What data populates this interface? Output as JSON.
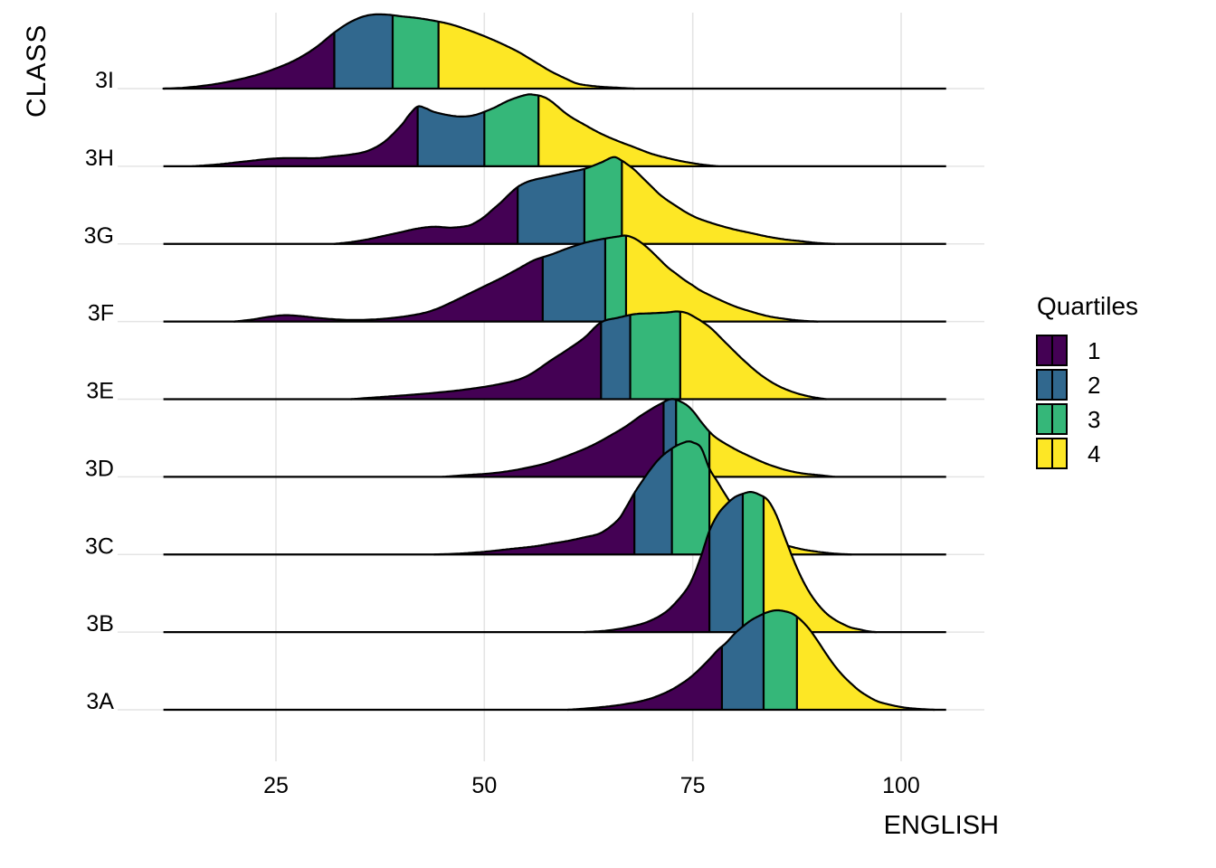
{
  "chart_data": {
    "type": "ridgeline",
    "title": "",
    "xlabel": "ENGLISH",
    "ylabel": "CLASS",
    "x_ticks": [
      25,
      50,
      75,
      100
    ],
    "x_tick_labels": [
      "25",
      "50",
      "75",
      "100"
    ],
    "x_range": [
      11.5,
      105.4
    ],
    "grid": {
      "major_x": true,
      "row_lines": true,
      "color": "#E4E4E4"
    },
    "legend": {
      "title": "Quartiles",
      "position": "right",
      "entries": [
        {
          "label": "1",
          "color": "#440154"
        },
        {
          "label": "2",
          "color": "#31688E"
        },
        {
          "label": "3",
          "color": "#35B779"
        },
        {
          "label": "4",
          "color": "#FDE725"
        }
      ]
    },
    "quartile_colors": [
      "#440154",
      "#31688E",
      "#35B779",
      "#FDE725"
    ],
    "outline_color": "#000000",
    "profile_height_units": "px (canvas 1344x960)",
    "classes_top_to_bottom": [
      {
        "label": "3I",
        "quartiles": [
          32,
          39,
          44.5
        ],
        "profile": [
          [
            11.5,
            0
          ],
          [
            14,
            1
          ],
          [
            17,
            4
          ],
          [
            20,
            9
          ],
          [
            23,
            16
          ],
          [
            26,
            26
          ],
          [
            28,
            35
          ],
          [
            30,
            47
          ],
          [
            32,
            62
          ],
          [
            34,
            74
          ],
          [
            36,
            81
          ],
          [
            38,
            82
          ],
          [
            40,
            80
          ],
          [
            42,
            78
          ],
          [
            44,
            75
          ],
          [
            46,
            71
          ],
          [
            48,
            65
          ],
          [
            50,
            58
          ],
          [
            52,
            50
          ],
          [
            54,
            41
          ],
          [
            56,
            30
          ],
          [
            58,
            19
          ],
          [
            60,
            10
          ],
          [
            61,
            6
          ],
          [
            62,
            4
          ],
          [
            64,
            2
          ],
          [
            66,
            1
          ],
          [
            68,
            0
          ]
        ]
      },
      {
        "label": "3H",
        "quartiles": [
          42,
          50,
          56.5
        ],
        "profile": [
          [
            15,
            0
          ],
          [
            18,
            2
          ],
          [
            21,
            5
          ],
          [
            24,
            8
          ],
          [
            26,
            9
          ],
          [
            28,
            9
          ],
          [
            30,
            9
          ],
          [
            32,
            11
          ],
          [
            34,
            13
          ],
          [
            36,
            17
          ],
          [
            38,
            27
          ],
          [
            40,
            45
          ],
          [
            41,
            57
          ],
          [
            42,
            66
          ],
          [
            43,
            64
          ],
          [
            44,
            60
          ],
          [
            46,
            56
          ],
          [
            47.5,
            55
          ],
          [
            49,
            57
          ],
          [
            51,
            64
          ],
          [
            53,
            73
          ],
          [
            55,
            79
          ],
          [
            56,
            79
          ],
          [
            57,
            77
          ],
          [
            58,
            72
          ],
          [
            60,
            57
          ],
          [
            62,
            46
          ],
          [
            64,
            36
          ],
          [
            66,
            28
          ],
          [
            68,
            21
          ],
          [
            70,
            14
          ],
          [
            72,
            9
          ],
          [
            74,
            5
          ],
          [
            76,
            2
          ],
          [
            78,
            0
          ]
        ]
      },
      {
        "label": "3G",
        "quartiles": [
          54,
          62,
          66.5
        ],
        "profile": [
          [
            32,
            0
          ],
          [
            34,
            2
          ],
          [
            36,
            5
          ],
          [
            38,
            9
          ],
          [
            40,
            13
          ],
          [
            42,
            17
          ],
          [
            44,
            19
          ],
          [
            46,
            18
          ],
          [
            48,
            20
          ],
          [
            49,
            24
          ],
          [
            50,
            30
          ],
          [
            51,
            38
          ],
          [
            52,
            46
          ],
          [
            53,
            55
          ],
          [
            54,
            63
          ],
          [
            55,
            68
          ],
          [
            56,
            71
          ],
          [
            57,
            73
          ],
          [
            58,
            75
          ],
          [
            60,
            79
          ],
          [
            62,
            83
          ],
          [
            64,
            90
          ],
          [
            65.5,
            96
          ],
          [
            66.5,
            92
          ],
          [
            67,
            89
          ],
          [
            68,
            82
          ],
          [
            69,
            73
          ],
          [
            70,
            64
          ],
          [
            71,
            55
          ],
          [
            72,
            48
          ],
          [
            73,
            42
          ],
          [
            74,
            36
          ],
          [
            75,
            31
          ],
          [
            76,
            27
          ],
          [
            78,
            21
          ],
          [
            80,
            16
          ],
          [
            82,
            12
          ],
          [
            84,
            8
          ],
          [
            86,
            5
          ],
          [
            88,
            3
          ],
          [
            90,
            1
          ],
          [
            92,
            0
          ]
        ]
      },
      {
        "label": "3F",
        "quartiles": [
          57,
          64.5,
          67
        ],
        "profile": [
          [
            20,
            0
          ],
          [
            22,
            2
          ],
          [
            24,
            5
          ],
          [
            26,
            7
          ],
          [
            28,
            6
          ],
          [
            30,
            4
          ],
          [
            33,
            2
          ],
          [
            36,
            2
          ],
          [
            39,
            4
          ],
          [
            42,
            8
          ],
          [
            44,
            13
          ],
          [
            46,
            21
          ],
          [
            48,
            30
          ],
          [
            50,
            39
          ],
          [
            52,
            48
          ],
          [
            54,
            58
          ],
          [
            56,
            68
          ],
          [
            58,
            74
          ],
          [
            60,
            81
          ],
          [
            62,
            87
          ],
          [
            64,
            91
          ],
          [
            66,
            94
          ],
          [
            67,
            95
          ],
          [
            68,
            92
          ],
          [
            69,
            86
          ],
          [
            70,
            78
          ],
          [
            71,
            69
          ],
          [
            72,
            60
          ],
          [
            73,
            53
          ],
          [
            74,
            46
          ],
          [
            75,
            40
          ],
          [
            76,
            34
          ],
          [
            78,
            25
          ],
          [
            80,
            17
          ],
          [
            82,
            11
          ],
          [
            84,
            6
          ],
          [
            86,
            3
          ],
          [
            88,
            1
          ],
          [
            90,
            0
          ]
        ]
      },
      {
        "label": "3E",
        "quartiles": [
          64,
          67.5,
          73.5
        ],
        "profile": [
          [
            34,
            0
          ],
          [
            37,
            2
          ],
          [
            40,
            4
          ],
          [
            44,
            7
          ],
          [
            48,
            11
          ],
          [
            52,
            17
          ],
          [
            55,
            25
          ],
          [
            58,
            43
          ],
          [
            60,
            55
          ],
          [
            62,
            68
          ],
          [
            64,
            85
          ],
          [
            66,
            90
          ],
          [
            68,
            94
          ],
          [
            70,
            95
          ],
          [
            72,
            96
          ],
          [
            73,
            97
          ],
          [
            74,
            96
          ],
          [
            75,
            92
          ],
          [
            77,
            80
          ],
          [
            79,
            62
          ],
          [
            81,
            44
          ],
          [
            83,
            28
          ],
          [
            85,
            16
          ],
          [
            87,
            8
          ],
          [
            89,
            3
          ],
          [
            91,
            0
          ]
        ]
      },
      {
        "label": "3D",
        "quartiles": [
          71.5,
          73,
          77
        ],
        "profile": [
          [
            45,
            0
          ],
          [
            48,
            2
          ],
          [
            51,
            4
          ],
          [
            54,
            8
          ],
          [
            57,
            14
          ],
          [
            59,
            20
          ],
          [
            61,
            27
          ],
          [
            63,
            35
          ],
          [
            65,
            45
          ],
          [
            67,
            56
          ],
          [
            69,
            69
          ],
          [
            71,
            80
          ],
          [
            72.5,
            86
          ],
          [
            74,
            81
          ],
          [
            75,
            73
          ],
          [
            76,
            61
          ],
          [
            77,
            50
          ],
          [
            78,
            42
          ],
          [
            80,
            31
          ],
          [
            82,
            22
          ],
          [
            84,
            14
          ],
          [
            86,
            8
          ],
          [
            88,
            4
          ],
          [
            90,
            2
          ],
          [
            92,
            0
          ]
        ]
      },
      {
        "label": "3C",
        "quartiles": [
          68,
          72.5,
          77
        ],
        "profile": [
          [
            44,
            0
          ],
          [
            47,
            1
          ],
          [
            50,
            3
          ],
          [
            53,
            6
          ],
          [
            56,
            9
          ],
          [
            58,
            12
          ],
          [
            60,
            15
          ],
          [
            62,
            19
          ],
          [
            64,
            24
          ],
          [
            66,
            38
          ],
          [
            67,
            52
          ],
          [
            68,
            68
          ],
          [
            69,
            82
          ],
          [
            70,
            95
          ],
          [
            71,
            106
          ],
          [
            72,
            114
          ],
          [
            73,
            120
          ],
          [
            74,
            124
          ],
          [
            74.5,
            125
          ],
          [
            75,
            124
          ],
          [
            76,
            118
          ],
          [
            77,
            95
          ],
          [
            78,
            80
          ],
          [
            79,
            65
          ],
          [
            80,
            52
          ],
          [
            82,
            33
          ],
          [
            84,
            20
          ],
          [
            86,
            11
          ],
          [
            88,
            6
          ],
          [
            90,
            3
          ],
          [
            92,
            1
          ],
          [
            94,
            0
          ]
        ]
      },
      {
        "label": "3B",
        "quartiles": [
          77,
          81,
          83.5
        ],
        "profile": [
          [
            62,
            0
          ],
          [
            65,
            2
          ],
          [
            68,
            7
          ],
          [
            70,
            13
          ],
          [
            72,
            24
          ],
          [
            74,
            44
          ],
          [
            75,
            60
          ],
          [
            76,
            84
          ],
          [
            77,
            112
          ],
          [
            78,
            130
          ],
          [
            79,
            141
          ],
          [
            80,
            149
          ],
          [
            81,
            153
          ],
          [
            82,
            155
          ],
          [
            83,
            152
          ],
          [
            84,
            146
          ],
          [
            85,
            130
          ],
          [
            86,
            106
          ],
          [
            87,
            82
          ],
          [
            88,
            61
          ],
          [
            89,
            44
          ],
          [
            90,
            31
          ],
          [
            91,
            21
          ],
          [
            92,
            14
          ],
          [
            93,
            9
          ],
          [
            94,
            5
          ],
          [
            95,
            3
          ],
          [
            96,
            1
          ],
          [
            97,
            0
          ]
        ]
      },
      {
        "label": "3A",
        "quartiles": [
          78.5,
          83.5,
          87.5
        ],
        "profile": [
          [
            60,
            0
          ],
          [
            63,
            2
          ],
          [
            66,
            5
          ],
          [
            69,
            10
          ],
          [
            71,
            16
          ],
          [
            73,
            25
          ],
          [
            75,
            38
          ],
          [
            77,
            56
          ],
          [
            78,
            66
          ],
          [
            79,
            74
          ],
          [
            80,
            84
          ],
          [
            81,
            92
          ],
          [
            82,
            99
          ],
          [
            83,
            104
          ],
          [
            84,
            108
          ],
          [
            85,
            110
          ],
          [
            86,
            109
          ],
          [
            87,
            106
          ],
          [
            88,
            99
          ],
          [
            89,
            89
          ],
          [
            90,
            76
          ],
          [
            91,
            62
          ],
          [
            92,
            49
          ],
          [
            93,
            38
          ],
          [
            94,
            29
          ],
          [
            95,
            21
          ],
          [
            96,
            15
          ],
          [
            97,
            10
          ],
          [
            98,
            7
          ],
          [
            100,
            3
          ],
          [
            102,
            1
          ],
          [
            104,
            0
          ]
        ]
      }
    ]
  }
}
